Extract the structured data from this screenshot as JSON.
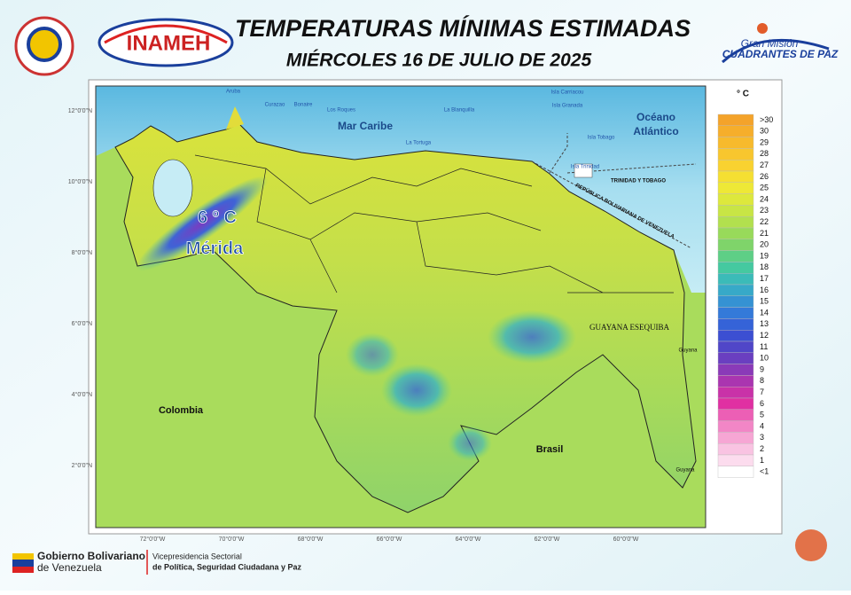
{
  "header": {
    "title": "TEMPERATURAS MÍNIMAS ESTIMADAS",
    "subtitle": "MIÉRCOLES 16 DE JULIO DE 2025",
    "left_logo": "INAMEH",
    "right_logo_top": "Gran Misión",
    "right_logo_bottom": "CUADRANTES DE PAZ"
  },
  "map": {
    "annotation_value": "6 º C",
    "annotation_place": "Mérida",
    "labels": {
      "caribbean": "Mar Caribe",
      "ocean_1": "Océano",
      "ocean_2": "Atlántico",
      "colombia": "Colombia",
      "brasil": "Brasil",
      "esequiba": "GUAYANA ESEQUIBA",
      "guyana_1": "Guyana",
      "guyana_2": "Guyana",
      "tt": "TRINIDAD Y TOBAGO",
      "rbv": "REPÚBLICA BOLIVARIANA DE VENEZUELA",
      "aruba": "Aruba",
      "curazao": "Curazao",
      "bonaire": "Bonaire",
      "roques": "Los Roques",
      "tortuga": "La Tortuga",
      "blanquilla": "La Blanquilla",
      "carriacou": "Isla Carriacou",
      "granada": "Isla Granada",
      "tobago": "Isla Tobago",
      "trinidad": "Isla Trinidad"
    },
    "lat_ticks": [
      "12°0'0\"N",
      "10°0'0\"N",
      "8°0'0\"N",
      "6°0'0\"N",
      "4°0'0\"N",
      "2°0'0\"N"
    ],
    "lon_ticks": [
      "72°0'0\"W",
      "70°0'0\"W",
      "68°0'0\"W",
      "66°0'0\"W",
      "64°0'0\"W",
      "62°0'0\"W",
      "60°0'0\"W"
    ]
  },
  "legend": {
    "unit": "° C",
    "entries": [
      {
        "label": ">30",
        "color": "#f4a32a"
      },
      {
        "label": "30",
        "color": "#f6ae2b"
      },
      {
        "label": "29",
        "color": "#f7ba2c"
      },
      {
        "label": "28",
        "color": "#f8c62e"
      },
      {
        "label": "27",
        "color": "#f9d230"
      },
      {
        "label": "26",
        "color": "#f5df32"
      },
      {
        "label": "25",
        "color": "#eee836"
      },
      {
        "label": "24",
        "color": "#dde83c"
      },
      {
        "label": "23",
        "color": "#c8e545"
      },
      {
        "label": "22",
        "color": "#b2e04e"
      },
      {
        "label": "21",
        "color": "#98da5a"
      },
      {
        "label": "20",
        "color": "#7fd46a"
      },
      {
        "label": "19",
        "color": "#5ecf86"
      },
      {
        "label": "18",
        "color": "#45c9a0"
      },
      {
        "label": "17",
        "color": "#3bbbb8"
      },
      {
        "label": "16",
        "color": "#37a9c8"
      },
      {
        "label": "15",
        "color": "#3592d3"
      },
      {
        "label": "14",
        "color": "#347ad9"
      },
      {
        "label": "13",
        "color": "#3563d8"
      },
      {
        "label": "12",
        "color": "#3c4fd2"
      },
      {
        "label": "11",
        "color": "#5046c8"
      },
      {
        "label": "10",
        "color": "#6a3fc0"
      },
      {
        "label": "9",
        "color": "#8a3ab8"
      },
      {
        "label": "8",
        "color": "#aa35b0"
      },
      {
        "label": "7",
        "color": "#c932a8"
      },
      {
        "label": "6",
        "color": "#e030a2"
      },
      {
        "label": "5",
        "color": "#ec5fb5"
      },
      {
        "label": "4",
        "color": "#f286c6"
      },
      {
        "label": "3",
        "color": "#f6a6d4"
      },
      {
        "label": "2",
        "color": "#f9c3e2"
      },
      {
        "label": "1",
        "color": "#fcdcee"
      },
      {
        "label": "<1",
        "color": "#ffffff"
      }
    ]
  },
  "footer": {
    "gov_1": "Gobierno Bolivariano",
    "gov_2": "de Venezuela",
    "vice_1": "Vicepresidencia Sectorial",
    "vice_2": "de Política, Seguridad Ciudadana y Paz"
  }
}
